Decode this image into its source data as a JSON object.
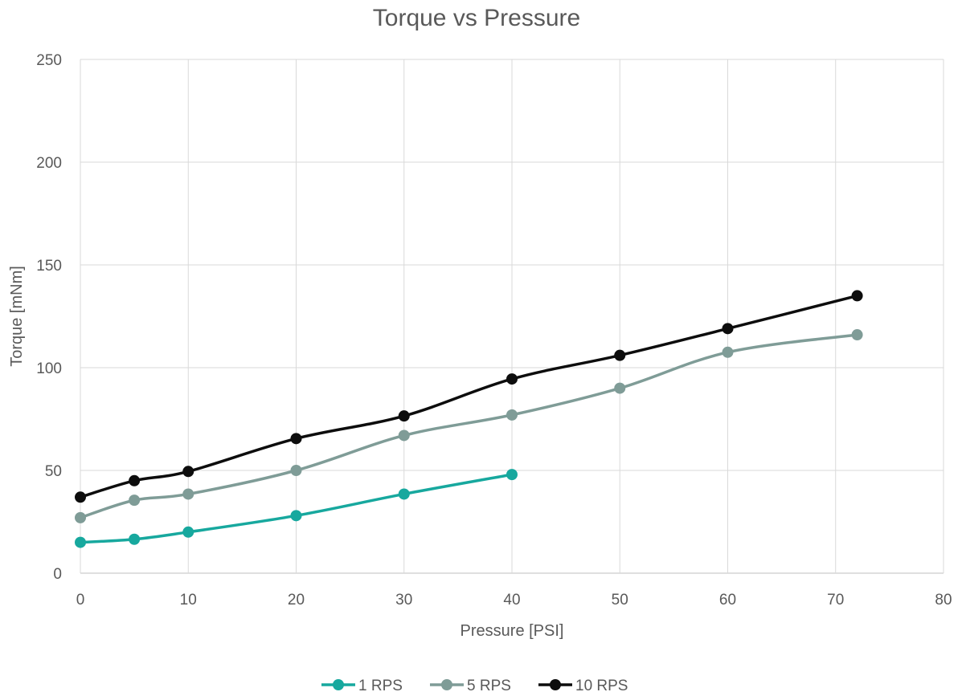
{
  "chart_data": {
    "type": "line",
    "title": "Torque vs Pressure",
    "xlabel": "Pressure [PSI]",
    "ylabel": "Torque [mNm]",
    "xlim": [
      0,
      80
    ],
    "ylim": [
      0,
      250
    ],
    "xticks": [
      "0",
      "10",
      "20",
      "30",
      "40",
      "50",
      "60",
      "70",
      "80"
    ],
    "yticks": [
      "0",
      "50",
      "100",
      "150",
      "200",
      "250"
    ],
    "grid": true,
    "legend_position": "bottom",
    "series": [
      {
        "name": "1 RPS",
        "color": "#17a89e",
        "x": [
          0,
          5,
          10,
          20,
          30,
          40
        ],
        "y": [
          15,
          16.5,
          20,
          28,
          38.5,
          48
        ]
      },
      {
        "name": "5 RPS",
        "color": "#7f9c97",
        "x": [
          0,
          5,
          10,
          20,
          30,
          40,
          50,
          60,
          72
        ],
        "y": [
          27,
          35.5,
          38.5,
          50,
          67,
          77,
          90,
          107.5,
          116
        ]
      },
      {
        "name": "10 RPS",
        "color": "#0d0d0d",
        "x": [
          0,
          5,
          10,
          20,
          30,
          40,
          50,
          60,
          72
        ],
        "y": [
          37,
          45,
          49.5,
          65.5,
          76.5,
          94.5,
          106,
          119,
          135
        ]
      }
    ]
  }
}
